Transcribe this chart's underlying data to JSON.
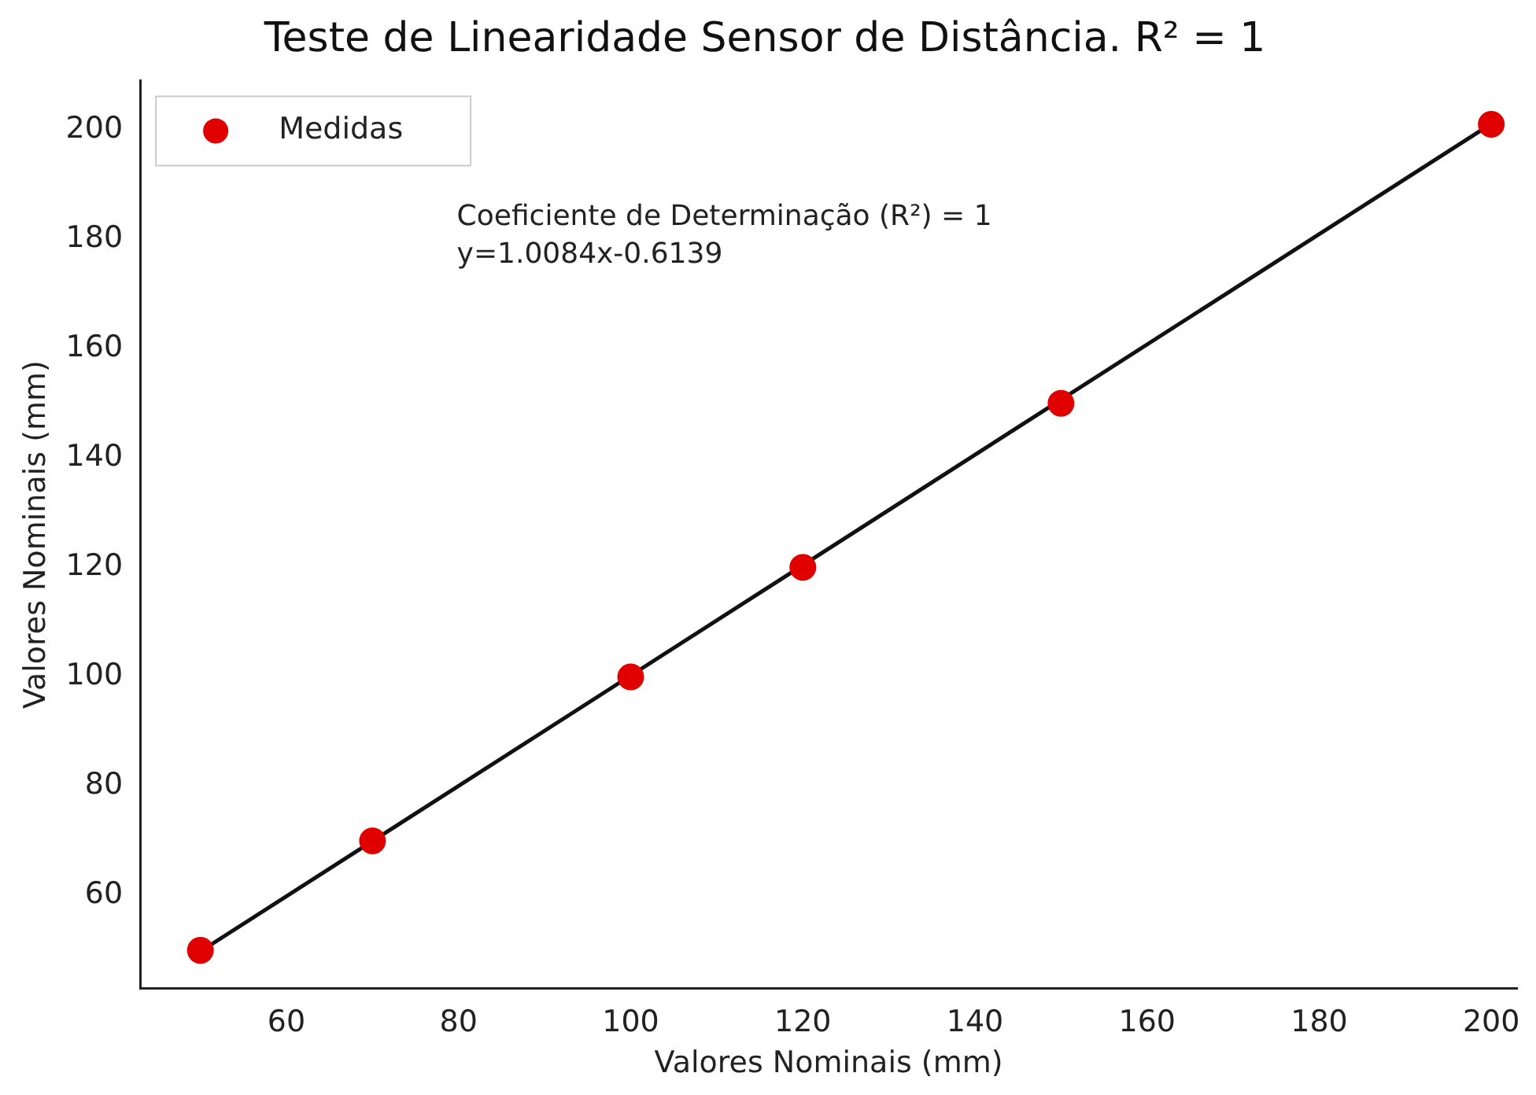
{
  "chart_data": {
    "type": "scatter",
    "title": "Teste de Linearidade Sensor de Distância. R² = 1",
    "xlabel": "Valores Nominais (mm)",
    "ylabel": "Valores Nominais (mm)",
    "series": [
      {
        "name": "Medidas",
        "type": "scatter",
        "marker": "circle",
        "color": "#e00000",
        "x": [
          50,
          70,
          100,
          120,
          150,
          200
        ],
        "values": [
          50,
          70,
          100,
          120,
          150,
          201
        ]
      },
      {
        "type": "line",
        "marker": "none",
        "color": "#111111",
        "x": [
          50,
          200
        ],
        "values": [
          49.8,
          201.1
        ]
      }
    ],
    "xlim": [
      43,
      203
    ],
    "xticks": [
      60,
      80,
      100,
      120,
      140,
      160,
      180,
      200
    ],
    "ylim": [
      43,
      209
    ],
    "yticks": [
      60,
      80,
      100,
      120,
      140,
      160,
      180,
      200
    ],
    "annotations": [
      "Coeficiente de Determinação (R²) = 1",
      "y=1.0084x-0.6139"
    ],
    "legend": "top left",
    "grid": false
  }
}
